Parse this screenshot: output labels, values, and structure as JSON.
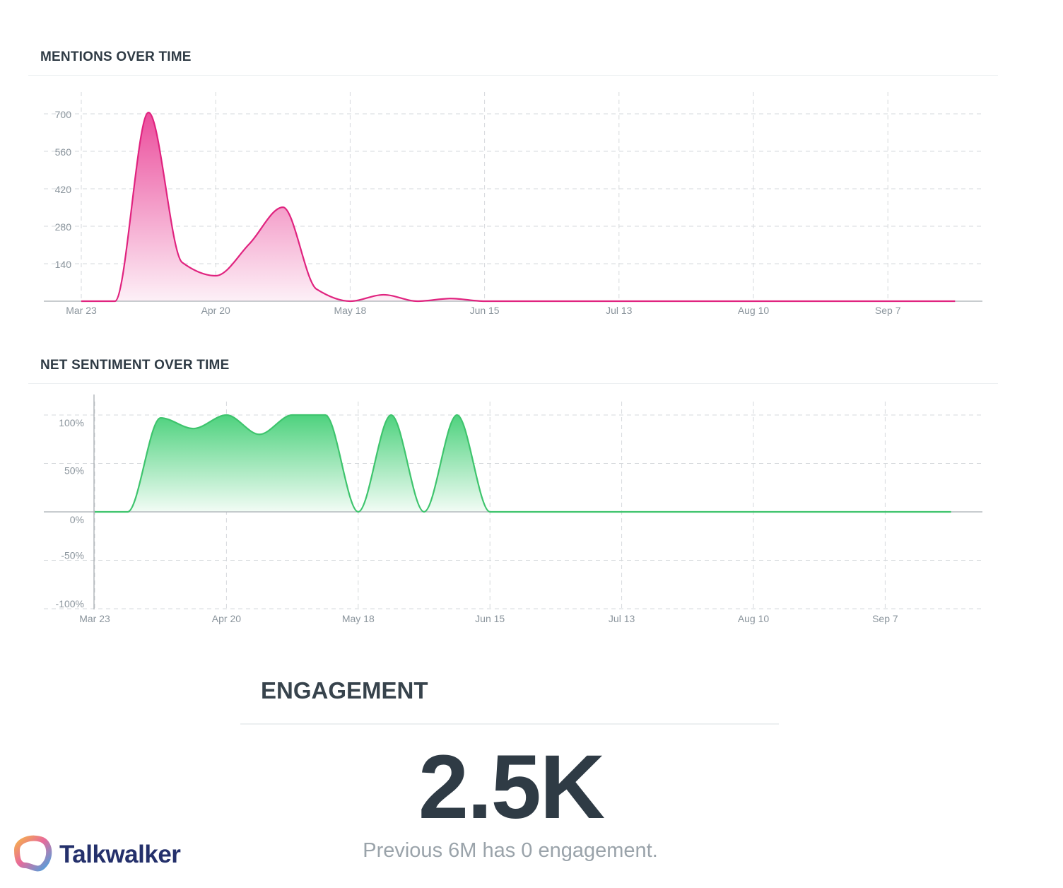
{
  "chart_data": [
    {
      "type": "area",
      "title": "MENTIONS OVER TIME",
      "x": [
        "Mar 23",
        "Mar 30",
        "Apr 6",
        "Apr 13",
        "Apr 20",
        "Apr 27",
        "May 4",
        "May 11",
        "May 18",
        "May 25",
        "Jun 1",
        "Jun 8",
        "Jun 15",
        "Jun 22",
        "Jun 29",
        "Jul 6",
        "Jul 13",
        "Jul 20",
        "Jul 27",
        "Aug 3",
        "Aug 10",
        "Aug 17",
        "Aug 24",
        "Aug 31",
        "Sep 7",
        "Sep 14",
        "Sep 21"
      ],
      "values": [
        0,
        0,
        705,
        145,
        95,
        214,
        351,
        45,
        0,
        24,
        0,
        10,
        0,
        0,
        0,
        0,
        0,
        0,
        0,
        0,
        0,
        0,
        0,
        0,
        0,
        0,
        0
      ],
      "xticks": [
        "Mar 23",
        "Apr 20",
        "May 18",
        "Jun 15",
        "Jul 13",
        "Aug 10",
        "Sep 7"
      ],
      "yticks": [
        140,
        280,
        420,
        560,
        700
      ],
      "ylim": [
        0,
        700
      ],
      "grid": true,
      "color": "#e0237f"
    },
    {
      "type": "area",
      "title": "NET SENTIMENT OVER TIME",
      "x": [
        "Mar 23",
        "Mar 30",
        "Apr 6",
        "Apr 13",
        "Apr 20",
        "Apr 27",
        "May 4",
        "May 11",
        "May 18",
        "May 25",
        "Jun 1",
        "Jun 8",
        "Jun 15",
        "Jun 22",
        "Jun 29",
        "Jul 6",
        "Jul 13",
        "Jul 20",
        "Jul 27",
        "Aug 3",
        "Aug 10",
        "Aug 17",
        "Aug 24",
        "Aug 31",
        "Sep 7",
        "Sep 14",
        "Sep 21"
      ],
      "values": [
        0,
        0,
        97,
        86,
        100,
        80,
        100,
        100,
        0,
        100,
        0,
        100,
        0,
        0,
        0,
        0,
        0,
        0,
        0,
        0,
        0,
        0,
        0,
        0,
        0,
        0,
        0
      ],
      "xticks": [
        "Mar 23",
        "Apr 20",
        "May 18",
        "Jun 15",
        "Jul 13",
        "Aug 10",
        "Sep 7"
      ],
      "yticks": [
        "100%",
        "50%",
        "0%",
        "-50%",
        "-100%"
      ],
      "ylim": [
        -100,
        100
      ],
      "unit": "%",
      "grid": true,
      "color": "#3ec46d"
    }
  ],
  "engagement": {
    "title": "ENGAGEMENT",
    "value": "2.5K",
    "subtitle": "Previous 6M has 0 engagement."
  },
  "brand": {
    "name": "Talkwalker",
    "color": "#24306b"
  }
}
